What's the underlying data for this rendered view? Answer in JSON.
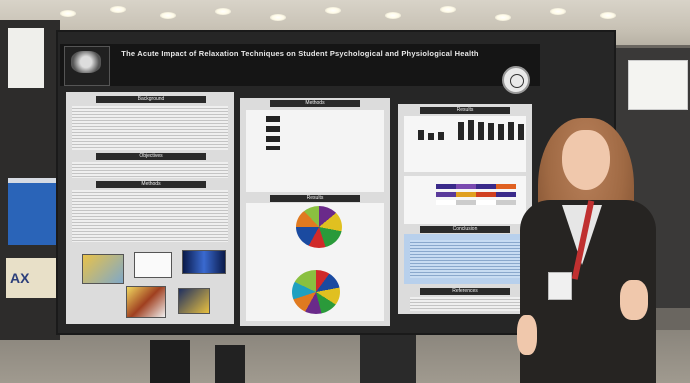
{
  "poster": {
    "title": "The Acute Impact of Relaxation Techniques on Student Psychological and Physiological Health",
    "authors": "",
    "affiliation": "",
    "sections": {
      "background": "Background",
      "objectives": "Objectives",
      "methods": "Methods",
      "results": "Results",
      "conclusion": "Conclusion",
      "references": "References"
    }
  },
  "left_sign": "AX",
  "colors": {
    "board": "#262626",
    "header": "#151515",
    "panel": "#dcdcdc",
    "blazer": "#262422",
    "lanyard": "#c03030"
  }
}
